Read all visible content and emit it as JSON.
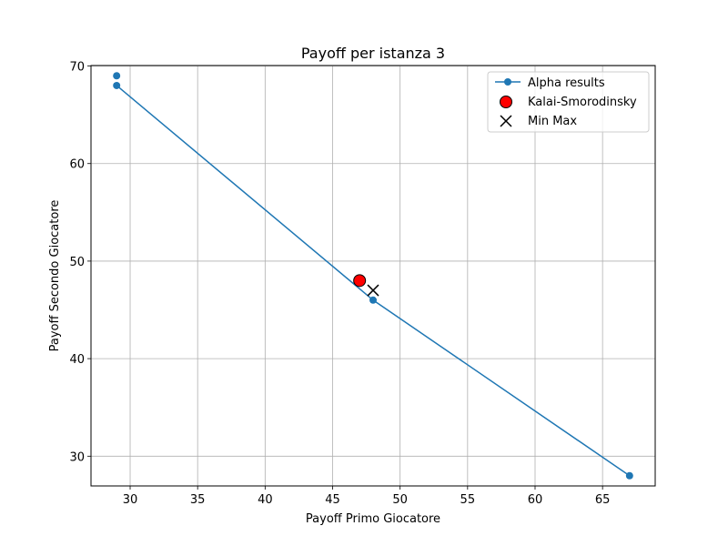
{
  "chart_data": {
    "type": "line",
    "title": "Payoff per istanza 3",
    "xlabel": "Payoff Primo Giocatore",
    "ylabel": "Payoff Secondo Giocatore",
    "xlim": [
      27.1,
      68.9
    ],
    "ylim": [
      26.95,
      70.05
    ],
    "xticks": [
      30,
      35,
      40,
      45,
      50,
      55,
      60,
      65
    ],
    "yticks": [
      30,
      40,
      50,
      60,
      70
    ],
    "grid": true,
    "legend_position": "top-right",
    "series": [
      {
        "name": "Alpha results",
        "kind": "line-marker",
        "color": "#1f77b4",
        "points": [
          [
            29,
            69
          ],
          [
            29,
            68
          ],
          [
            48,
            46
          ],
          [
            67,
            28
          ]
        ],
        "line_points": [
          [
            29,
            68
          ],
          [
            48,
            46
          ],
          [
            67,
            28
          ]
        ]
      },
      {
        "name": "Kalai-Smorodinsky",
        "kind": "scatter-circle",
        "color": "#ff0000",
        "edgecolor": "#000000",
        "points": [
          [
            47,
            48
          ]
        ]
      },
      {
        "name": "Min Max",
        "kind": "scatter-x",
        "color": "#000000",
        "points": [
          [
            48,
            47
          ]
        ]
      }
    ]
  }
}
